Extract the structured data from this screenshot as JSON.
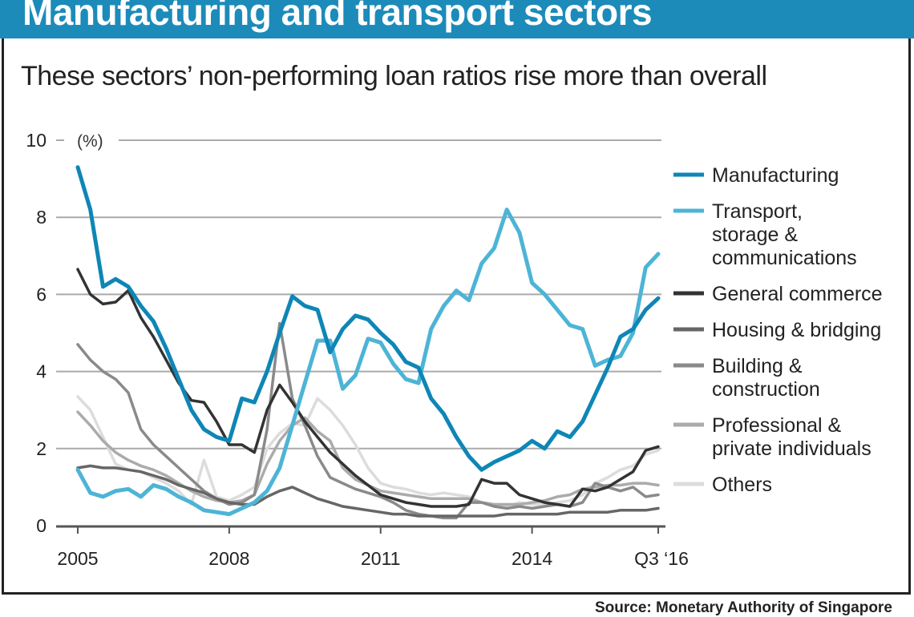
{
  "header": {
    "title": "Manufacturing and transport sectors",
    "subtitle": "These sectors’ non-performing loan ratios rise more than overall"
  },
  "source": {
    "label": "Source:",
    "text": "Monetary Authority of Singapore"
  },
  "chart_data": {
    "type": "line",
    "title": "Manufacturing and transport sectors",
    "subtitle": "These sectors’ non-performing loan ratios rise more than overall",
    "ylabel": "(%)",
    "xlabel": "",
    "ylim": [
      0,
      10
    ],
    "yticks": [
      0,
      2,
      4,
      6,
      8,
      10
    ],
    "ytick_labels": [
      "0",
      "2",
      "4",
      "6",
      "8",
      "10"
    ],
    "x_frequency": "quarterly, Q1 2005 to Q3 2016",
    "xticks": [
      {
        "index": 0,
        "label": "2005"
      },
      {
        "index": 12,
        "label": "2008"
      },
      {
        "index": 24,
        "label": "2011"
      },
      {
        "index": 36,
        "label": "2014"
      },
      {
        "index": 46,
        "label": "Q3 ‘16"
      }
    ],
    "grid": true,
    "legend_position": "right",
    "series": [
      {
        "name": "Manufacturing",
        "color": "#0e86b6",
        "width": 5,
        "values": [
          9.3,
          8.2,
          6.2,
          6.4,
          6.2,
          5.7,
          5.3,
          4.6,
          3.8,
          3.0,
          2.5,
          2.3,
          2.2,
          3.3,
          3.2,
          4.0,
          5.0,
          5.95,
          5.7,
          5.6,
          4.5,
          5.1,
          5.45,
          5.35,
          5.0,
          4.7,
          4.25,
          4.1,
          3.3,
          2.9,
          2.3,
          1.8,
          1.45,
          1.65,
          1.8,
          1.95,
          2.2,
          2.0,
          2.45,
          2.3,
          2.7,
          3.4,
          4.1,
          4.9,
          5.1,
          5.6,
          5.9
        ]
      },
      {
        "name": "Transport, storage & communications",
        "color": "#4db4d6",
        "width": 5,
        "values": [
          1.45,
          0.85,
          0.75,
          0.9,
          0.95,
          0.75,
          1.05,
          0.95,
          0.75,
          0.6,
          0.4,
          0.35,
          0.3,
          0.45,
          0.6,
          0.9,
          1.5,
          2.6,
          3.7,
          4.8,
          4.8,
          3.55,
          3.9,
          4.85,
          4.75,
          4.2,
          3.8,
          3.7,
          5.1,
          5.7,
          6.1,
          5.85,
          6.8,
          7.2,
          8.2,
          7.6,
          6.3,
          6.0,
          5.6,
          5.2,
          5.1,
          4.15,
          4.3,
          4.4,
          5.0,
          6.7,
          7.05
        ]
      },
      {
        "name": "General commerce",
        "color": "#333333",
        "width": 3.5,
        "values": [
          6.65,
          6.0,
          5.75,
          5.8,
          6.1,
          5.4,
          4.9,
          4.3,
          3.7,
          3.25,
          3.2,
          2.7,
          2.1,
          2.1,
          1.9,
          3.0,
          3.65,
          3.2,
          2.7,
          2.3,
          1.9,
          1.6,
          1.3,
          1.05,
          0.8,
          0.7,
          0.6,
          0.55,
          0.5,
          0.5,
          0.5,
          0.55,
          1.2,
          1.1,
          1.1,
          0.8,
          0.7,
          0.6,
          0.55,
          0.5,
          0.95,
          0.9,
          1.0,
          1.2,
          1.4,
          1.95,
          2.05
        ]
      },
      {
        "name": "Housing & bridging",
        "color": "#666666",
        "width": 3.5,
        "values": [
          1.5,
          1.55,
          1.5,
          1.5,
          1.45,
          1.4,
          1.3,
          1.2,
          1.05,
          0.95,
          0.85,
          0.7,
          0.6,
          0.55,
          0.55,
          0.75,
          0.9,
          1.0,
          0.85,
          0.7,
          0.6,
          0.5,
          0.45,
          0.4,
          0.35,
          0.3,
          0.3,
          0.25,
          0.25,
          0.25,
          0.25,
          0.25,
          0.25,
          0.25,
          0.3,
          0.3,
          0.3,
          0.3,
          0.3,
          0.35,
          0.35,
          0.35,
          0.35,
          0.4,
          0.4,
          0.4,
          0.45
        ]
      },
      {
        "name": "Building & construction",
        "color": "#8a8a8a",
        "width": 3.5,
        "values": [
          4.7,
          4.3,
          4.0,
          3.8,
          3.45,
          2.5,
          2.1,
          1.8,
          1.5,
          1.2,
          0.9,
          0.7,
          0.55,
          0.6,
          0.8,
          2.5,
          5.25,
          3.3,
          2.6,
          1.8,
          1.25,
          1.1,
          0.95,
          0.85,
          0.75,
          0.6,
          0.4,
          0.3,
          0.25,
          0.2,
          0.2,
          0.6,
          0.6,
          0.5,
          0.45,
          0.5,
          0.45,
          0.5,
          0.55,
          0.5,
          0.6,
          1.1,
          1.0,
          0.9,
          1.0,
          0.75,
          0.8
        ]
      },
      {
        "name": "Professional & private individuals",
        "color": "#ababab",
        "width": 3.5,
        "values": [
          2.95,
          2.6,
          2.2,
          1.9,
          1.7,
          1.55,
          1.45,
          1.3,
          1.1,
          0.9,
          0.75,
          0.65,
          0.6,
          0.65,
          0.8,
          1.6,
          2.2,
          2.6,
          2.8,
          2.45,
          2.2,
          1.5,
          1.2,
          1.05,
          0.9,
          0.85,
          0.8,
          0.75,
          0.7,
          0.7,
          0.7,
          0.7,
          0.6,
          0.55,
          0.55,
          0.55,
          0.6,
          0.65,
          0.75,
          0.8,
          0.95,
          1.0,
          1.05,
          1.05,
          1.1,
          1.1,
          1.05
        ]
      },
      {
        "name": "Others",
        "color": "#dcdcdc",
        "width": 3.5,
        "values": [
          3.35,
          3.0,
          2.3,
          1.6,
          1.45,
          1.4,
          1.25,
          1.1,
          0.9,
          0.55,
          1.7,
          0.75,
          0.65,
          0.8,
          1.0,
          2.0,
          2.4,
          2.65,
          2.6,
          3.3,
          3.0,
          2.6,
          2.1,
          1.5,
          1.1,
          1.0,
          0.95,
          0.85,
          0.8,
          0.85,
          0.8,
          0.75,
          0.6,
          0.55,
          0.5,
          0.6,
          0.55,
          0.55,
          0.6,
          0.65,
          0.8,
          1.1,
          1.25,
          1.45,
          1.55,
          1.85,
          1.95
        ]
      }
    ],
    "legend": [
      {
        "lines": [
          "Manufacturing"
        ]
      },
      {
        "lines": [
          "Transport,",
          "storage &",
          "communications"
        ]
      },
      {
        "lines": [
          "General commerce"
        ]
      },
      {
        "lines": [
          "Housing & bridging"
        ]
      },
      {
        "lines": [
          "Building &",
          "construction"
        ]
      },
      {
        "lines": [
          "Professional &",
          "private individuals"
        ]
      },
      {
        "lines": [
          "Others"
        ]
      }
    ]
  }
}
